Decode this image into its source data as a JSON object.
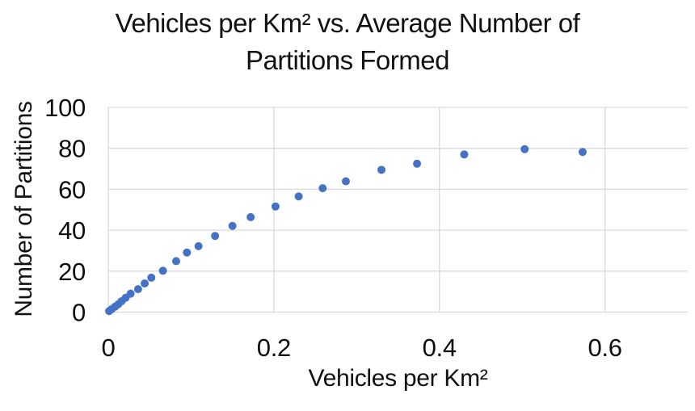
{
  "chart_data": {
    "type": "scatter",
    "title": "Vehicles per Km² vs. Average Number of Partitions Formed",
    "title_lines": [
      "Vehicles per Km² vs. Average Number of",
      "Partitions Formed"
    ],
    "xlabel": "Vehicles per Km²",
    "ylabel": "Number of Partitions",
    "xlim": [
      0,
      0.7
    ],
    "ylim": [
      0,
      100
    ],
    "x_ticks": [
      {
        "value": 0,
        "label": "0"
      },
      {
        "value": 0.2,
        "label": "0.2"
      },
      {
        "value": 0.4,
        "label": "0.4"
      },
      {
        "value": 0.6,
        "label": "0.6"
      }
    ],
    "y_ticks": [
      {
        "value": 0,
        "label": "0"
      },
      {
        "value": 20,
        "label": "20"
      },
      {
        "value": 40,
        "label": "40"
      },
      {
        "value": 60,
        "label": "60"
      },
      {
        "value": 80,
        "label": "80"
      },
      {
        "value": 100,
        "label": "100"
      }
    ],
    "grid": true,
    "legend": false,
    "point_color": "#4472C4",
    "gridline_color": "#D9D9D9",
    "text_color": "#0d0d0d",
    "points": [
      [
        0.001,
        0.5
      ],
      [
        0.004,
        1.4
      ],
      [
        0.008,
        2.6
      ],
      [
        0.012,
        3.8
      ],
      [
        0.016,
        5.3
      ],
      [
        0.021,
        7.0
      ],
      [
        0.027,
        9.0
      ],
      [
        0.036,
        11.2
      ],
      [
        0.044,
        14.0
      ],
      [
        0.052,
        16.8
      ],
      [
        0.066,
        20.2
      ],
      [
        0.082,
        24.9
      ],
      [
        0.095,
        29.1
      ],
      [
        0.109,
        32.2
      ],
      [
        0.129,
        37.2
      ],
      [
        0.15,
        42.1
      ],
      [
        0.172,
        46.4
      ],
      [
        0.202,
        51.6
      ],
      [
        0.23,
        56.5
      ],
      [
        0.259,
        60.5
      ],
      [
        0.287,
        63.9
      ],
      [
        0.33,
        69.5
      ],
      [
        0.373,
        72.5
      ],
      [
        0.43,
        77.0
      ],
      [
        0.503,
        79.6
      ],
      [
        0.573,
        78.2
      ]
    ]
  }
}
